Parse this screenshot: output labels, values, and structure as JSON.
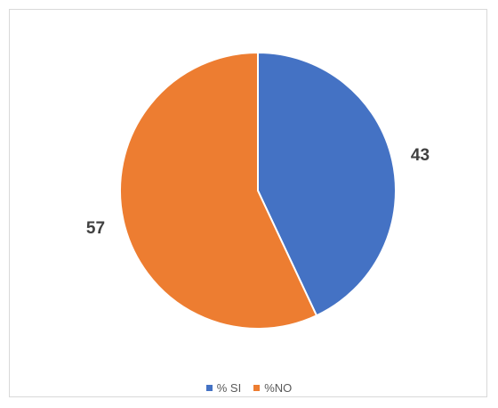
{
  "chart_data": {
    "type": "pie",
    "categories": [
      "% SI",
      "%NO"
    ],
    "values": [
      43,
      57
    ],
    "colors": [
      "#4472c4",
      "#ed7d31"
    ],
    "data_labels": [
      "43",
      "57"
    ],
    "title": "",
    "legend_position": "bottom",
    "start_angle": "top",
    "direction": "clockwise"
  }
}
